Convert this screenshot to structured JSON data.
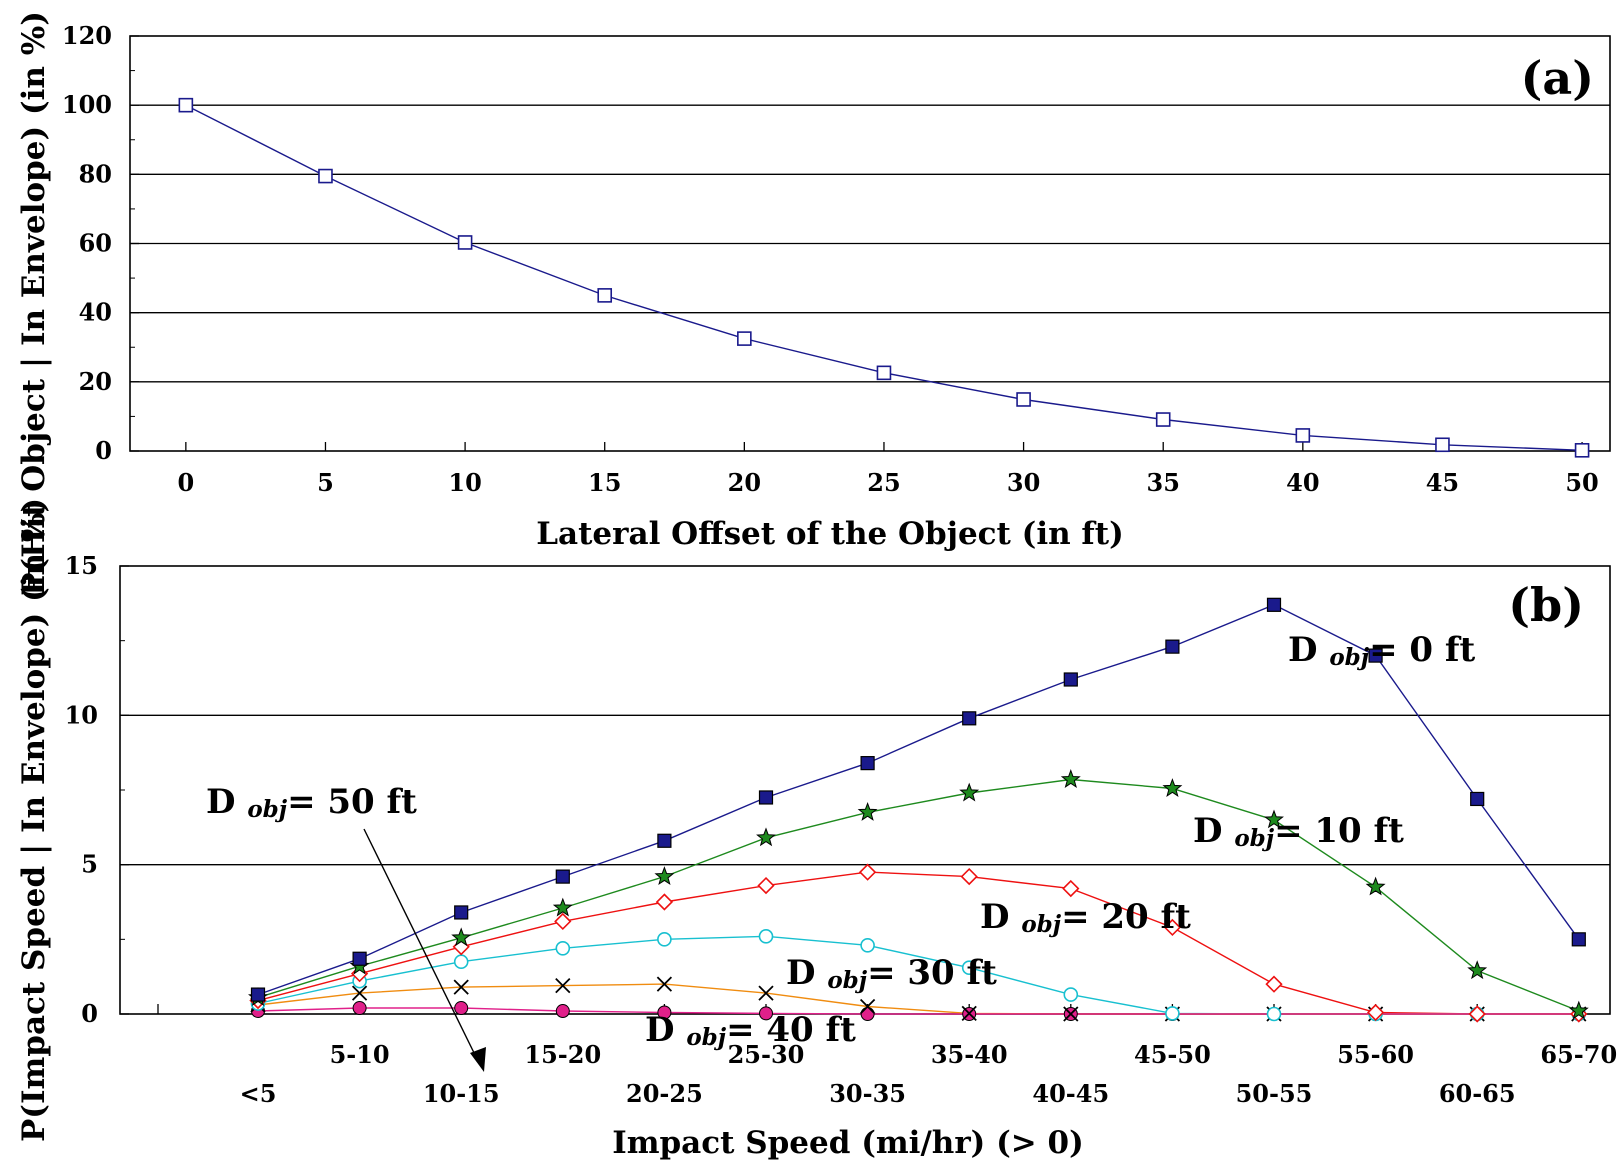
{
  "chart_data": [
    {
      "id": "a",
      "type": "line",
      "panel_label": "(a)",
      "title": "",
      "xlabel": "Lateral Offset of the Object (in ft)",
      "ylabel": "P(Hit Object | In Envelope) (in %)",
      "xlim": [
        -2,
        51
      ],
      "ylim": [
        0,
        120
      ],
      "xticks": [
        0,
        5,
        10,
        15,
        20,
        25,
        30,
        35,
        40,
        45,
        50
      ],
      "yticks": [
        0,
        20,
        40,
        60,
        80,
        100,
        120
      ],
      "grid": "horizontal",
      "series": [
        {
          "color": "#1a1a8c",
          "marker": "square-open",
          "x": [
            0,
            5,
            10,
            15,
            20,
            25,
            30,
            35,
            40,
            45,
            50
          ],
          "y": [
            100,
            79.5,
            60.3,
            45,
            32.5,
            22.6,
            14.9,
            9.1,
            4.5,
            1.8,
            0.2
          ]
        }
      ]
    },
    {
      "id": "b",
      "type": "line",
      "panel_label": "(b)",
      "title": "",
      "xlabel": "Impact Speed (mi/hr) (> 0)",
      "ylabel": "P(Impact Speed | In Envelope) (in %)",
      "categories": [
        "<5",
        "5-10",
        "10-15",
        "15-20",
        "20-25",
        "25-30",
        "30-35",
        "35-40",
        "40-45",
        "45-50",
        "50-55",
        "55-60",
        "60-65",
        "65-70"
      ],
      "ylim": [
        0,
        15
      ],
      "yticks": [
        0,
        5,
        10,
        15
      ],
      "grid": "horizontal",
      "series": [
        {
          "color": "#1a1a8c",
          "marker": "square-filled",
          "values": [
            0.65,
            1.85,
            3.4,
            4.6,
            5.8,
            7.25,
            8.4,
            9.9,
            11.2,
            12.3,
            13.7,
            12.0,
            7.2,
            2.5
          ]
        },
        {
          "color": "#1e8a1e",
          "marker": "star",
          "values": [
            0.55,
            1.6,
            2.55,
            3.55,
            4.6,
            5.9,
            6.75,
            7.4,
            7.85,
            7.55,
            6.5,
            4.25,
            1.45,
            0.1
          ]
        },
        {
          "color": "#ee1111",
          "marker": "diamond-open",
          "values": [
            0.45,
            1.35,
            2.25,
            3.1,
            3.75,
            4.3,
            4.75,
            4.6,
            4.2,
            2.9,
            1.0,
            0.05,
            0.0,
            0.0
          ]
        },
        {
          "color": "#18c0d0",
          "marker": "circle-open",
          "values": [
            0.35,
            1.1,
            1.75,
            2.2,
            2.5,
            2.6,
            2.3,
            1.55,
            0.65,
            0.02,
            0.0,
            0.0,
            0.0,
            0.0
          ]
        },
        {
          "color": "#f08c10",
          "marker": "cross",
          "values": [
            0.3,
            0.7,
            0.9,
            0.95,
            1.0,
            0.7,
            0.25,
            0.02,
            0.0,
            0.0,
            0.0,
            0.0,
            0.0,
            0.0
          ]
        },
        {
          "color": "#e0208a",
          "marker": "circle-filled",
          "values": [
            0.1,
            0.2,
            0.2,
            0.1,
            0.05,
            0.02,
            0.0,
            0.0,
            0.0,
            0.0,
            0.0,
            0.0,
            0.0,
            0.0
          ]
        }
      ],
      "annotations": [
        {
          "main": "D",
          "sub": "obj",
          "rest": "= 0 ft"
        },
        {
          "main": "D",
          "sub": "obj",
          "rest": "= 10 ft"
        },
        {
          "main": "D",
          "sub": "obj",
          "rest": "= 20 ft"
        },
        {
          "main": "D",
          "sub": "obj",
          "rest": "= 30 ft"
        },
        {
          "main": "D",
          "sub": "obj",
          "rest": "= 40 ft"
        },
        {
          "main": "D",
          "sub": "obj",
          "rest": "= 50 ft"
        }
      ]
    }
  ]
}
